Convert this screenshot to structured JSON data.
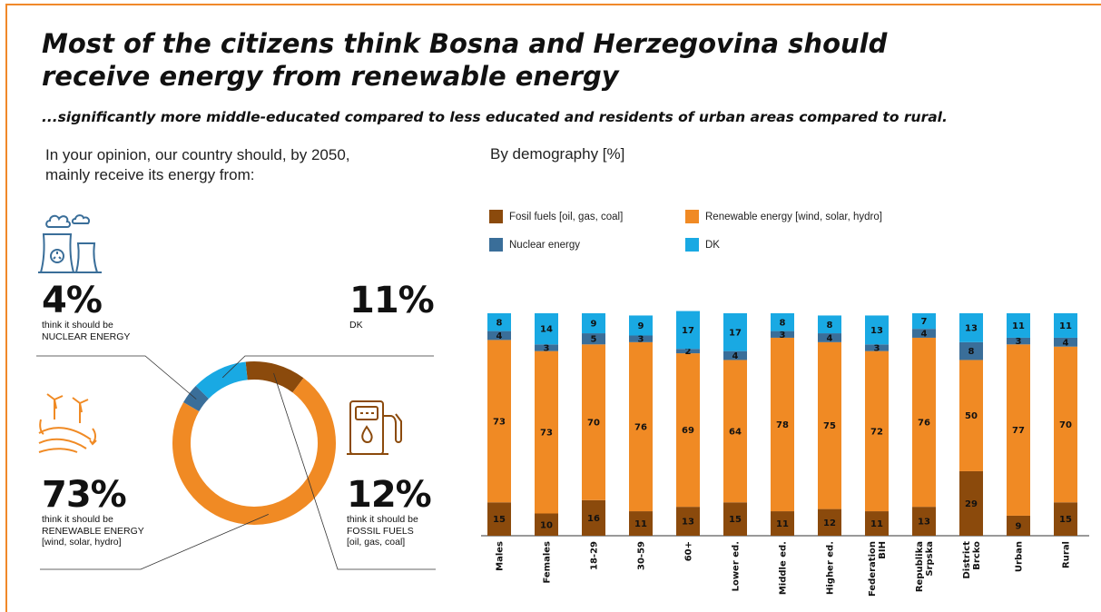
{
  "header": {
    "title_line1": "Most of the citizens think Bosna and Herzegovina should",
    "title_line2": "receive energy from renewable energy",
    "subtitle": "...significantly more middle-educated compared to less educated and residents of urban areas compared to rural."
  },
  "left": {
    "question_line1": "In your opinion, our country should, by 2050,",
    "question_line2": "mainly receive its energy from:",
    "nuclear": {
      "pct": "4%",
      "line1": "think it should be",
      "line2": "NUCLEAR ENERGY"
    },
    "dk": {
      "pct": "11%",
      "line1": "DK"
    },
    "renewable": {
      "pct": "73%",
      "line1": "think it should be",
      "line2": "RENEWABLE ENERGY",
      "line3": "[wind, solar, hydro]"
    },
    "fossil": {
      "pct": "12%",
      "line1": "think it should be",
      "line2": "FOSSIL FUELS",
      "line3": "[oil, gas, coal]"
    }
  },
  "right": {
    "heading": "By demography [%]",
    "legend": {
      "fossil": "Fosil fuels [oil, gas, coal]",
      "renewable": "Renewable energy [wind, solar, hydro]",
      "nuclear": "Nuclear energy",
      "dk": "DK"
    }
  },
  "colors": {
    "fossil": "#8b4a0c",
    "renewable": "#f08a24",
    "nuclear": "#3a6e99",
    "dk": "#19a9e3",
    "accent": "#f0892a"
  },
  "chart_data": [
    {
      "type": "pie",
      "variant": "donut",
      "labels": [
        "Fossil fuels",
        "Renewable energy",
        "Nuclear energy",
        "DK"
      ],
      "values": [
        12,
        73,
        4,
        11
      ]
    },
    {
      "type": "bar",
      "stacked": true,
      "categories": [
        "Males",
        "Females",
        "18-29",
        "30-59",
        "60+",
        "Lower ed.",
        "Middle ed.",
        "Higher ed.",
        "Federation BIH",
        "Republika Srpska",
        "District Brcko",
        "Urban",
        "Rural"
      ],
      "series": [
        {
          "name": "Fosil fuels [oil, gas, coal]",
          "values": [
            15,
            10,
            16,
            11,
            13,
            15,
            11,
            12,
            11,
            13,
            29,
            9,
            15
          ]
        },
        {
          "name": "Renewable energy [wind, solar, hydro]",
          "values": [
            73,
            73,
            70,
            76,
            69,
            64,
            78,
            75,
            72,
            76,
            50,
            77,
            70
          ]
        },
        {
          "name": "Nuclear energy",
          "values": [
            4,
            3,
            5,
            3,
            2,
            4,
            3,
            4,
            3,
            4,
            8,
            3,
            4
          ]
        },
        {
          "name": "DK",
          "values": [
            8,
            14,
            9,
            9,
            17,
            17,
            8,
            8,
            13,
            7,
            13,
            11,
            11
          ]
        }
      ],
      "ylim": [
        0,
        100
      ],
      "legend": "top",
      "grid": false
    }
  ]
}
